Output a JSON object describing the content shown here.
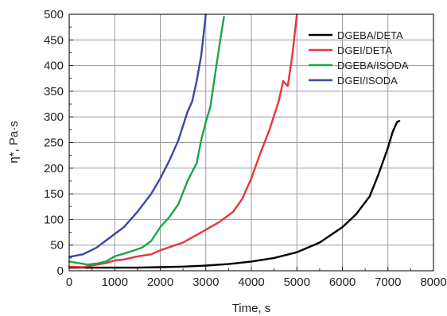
{
  "chart_data": {
    "type": "line",
    "xlabel": "Time, s",
    "ylabel": "η*, Pa·s",
    "xlim": [
      0,
      8000
    ],
    "ylim": [
      0,
      500
    ],
    "x_ticks": [
      0,
      1000,
      2000,
      3000,
      4000,
      5000,
      6000,
      7000,
      8000
    ],
    "y_ticks": [
      0,
      50,
      100,
      150,
      200,
      250,
      300,
      350,
      400,
      450,
      500
    ],
    "x_tick_labels": [
      "0",
      "1000",
      "2000",
      "3000",
      "4000",
      "5000",
      "6000",
      "7000",
      "8000"
    ],
    "y_tick_labels": [
      "0",
      "50",
      "100",
      "150",
      "200",
      "250",
      "300",
      "350",
      "400",
      "450",
      "500"
    ],
    "grid": true,
    "legend_position": "top-right",
    "series": [
      {
        "name": "DGEBA/DETA",
        "color": "#000000",
        "points": [
          [
            0,
            6
          ],
          [
            500,
            6
          ],
          [
            1000,
            6
          ],
          [
            1500,
            6
          ],
          [
            2000,
            7
          ],
          [
            2500,
            8
          ],
          [
            3000,
            10
          ],
          [
            3500,
            13
          ],
          [
            4000,
            18
          ],
          [
            4500,
            25
          ],
          [
            5000,
            36
          ],
          [
            5500,
            55
          ],
          [
            6000,
            85
          ],
          [
            6300,
            110
          ],
          [
            6600,
            145
          ],
          [
            6800,
            190
          ],
          [
            7000,
            240
          ],
          [
            7100,
            270
          ],
          [
            7200,
            290
          ],
          [
            7250,
            292
          ]
        ]
      },
      {
        "name": "DGEI/DETA",
        "color": "#e8343a",
        "points": [
          [
            0,
            8
          ],
          [
            300,
            7
          ],
          [
            500,
            10
          ],
          [
            800,
            15
          ],
          [
            1000,
            20
          ],
          [
            1200,
            22
          ],
          [
            1500,
            28
          ],
          [
            1800,
            32
          ],
          [
            2000,
            40
          ],
          [
            2500,
            55
          ],
          [
            3000,
            80
          ],
          [
            3300,
            95
          ],
          [
            3600,
            115
          ],
          [
            3800,
            140
          ],
          [
            4000,
            180
          ],
          [
            4200,
            230
          ],
          [
            4400,
            275
          ],
          [
            4600,
            330
          ],
          [
            4700,
            370
          ],
          [
            4800,
            360
          ],
          [
            4900,
            420
          ],
          [
            5000,
            500
          ]
        ]
      },
      {
        "name": "DGEBA/ISODA",
        "color": "#1aa64b",
        "points": [
          [
            0,
            18
          ],
          [
            200,
            15
          ],
          [
            400,
            12
          ],
          [
            600,
            14
          ],
          [
            800,
            18
          ],
          [
            1000,
            28
          ],
          [
            1300,
            36
          ],
          [
            1600,
            45
          ],
          [
            1800,
            58
          ],
          [
            2000,
            85
          ],
          [
            2200,
            105
          ],
          [
            2400,
            130
          ],
          [
            2600,
            175
          ],
          [
            2800,
            210
          ],
          [
            2900,
            255
          ],
          [
            3000,
            290
          ],
          [
            3100,
            320
          ],
          [
            3200,
            380
          ],
          [
            3300,
            440
          ],
          [
            3400,
            495
          ]
        ]
      },
      {
        "name": "DGEI/ISODA",
        "color": "#3c47a6",
        "points": [
          [
            0,
            27
          ],
          [
            300,
            32
          ],
          [
            600,
            45
          ],
          [
            900,
            65
          ],
          [
            1200,
            85
          ],
          [
            1500,
            115
          ],
          [
            1800,
            150
          ],
          [
            2000,
            180
          ],
          [
            2200,
            215
          ],
          [
            2400,
            255
          ],
          [
            2600,
            310
          ],
          [
            2700,
            330
          ],
          [
            2800,
            370
          ],
          [
            2900,
            420
          ],
          [
            3000,
            500
          ]
        ]
      }
    ]
  }
}
